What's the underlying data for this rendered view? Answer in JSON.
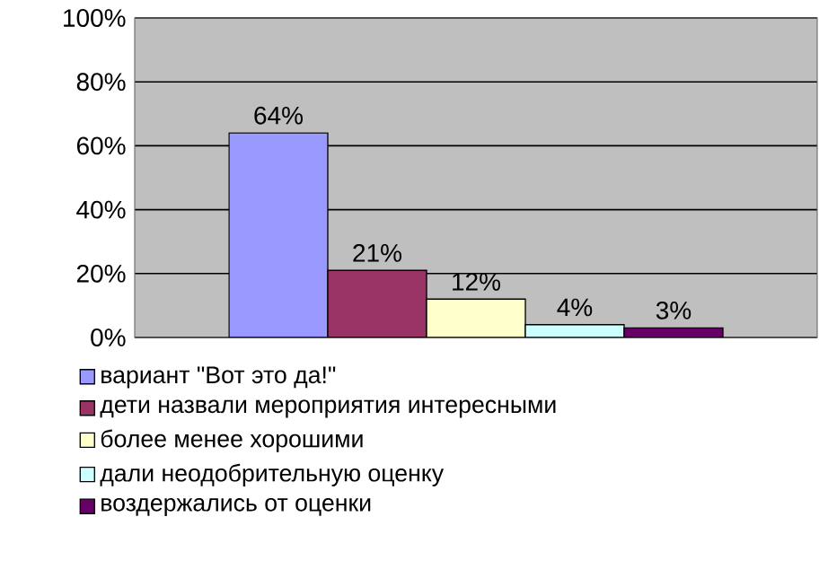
{
  "chart_data": {
    "type": "bar",
    "categories": [
      null
    ],
    "series": [
      {
        "name": "вариант \"Вот это да!\"",
        "color": "#9999ff",
        "values": [
          64
        ],
        "value_labels": [
          "64%"
        ]
      },
      {
        "name": "дети назвали мероприятия интересными",
        "color": "#993366",
        "values": [
          21
        ],
        "value_labels": [
          "21%"
        ]
      },
      {
        "name": "более менее хорошими",
        "color": "#ffffcc",
        "values": [
          12
        ],
        "value_labels": [
          "12%"
        ]
      },
      {
        "name": "дали неодобрительную оценку",
        "color": "#ccffff",
        "values": [
          4
        ],
        "value_labels": [
          "4%"
        ]
      },
      {
        "name": "воздержались от оценки",
        "color": "#660066",
        "values": [
          3
        ],
        "value_labels": [
          "3%"
        ]
      }
    ],
    "ylim": [
      0,
      100
    ],
    "yticks": [
      {
        "value": 0,
        "label": "0%"
      },
      {
        "value": 20,
        "label": "20%"
      },
      {
        "value": 40,
        "label": "40%"
      },
      {
        "value": 60,
        "label": "60%"
      },
      {
        "value": 80,
        "label": "80%"
      },
      {
        "value": 100,
        "label": "100%"
      }
    ],
    "grid": "y",
    "legend": "bottom"
  }
}
